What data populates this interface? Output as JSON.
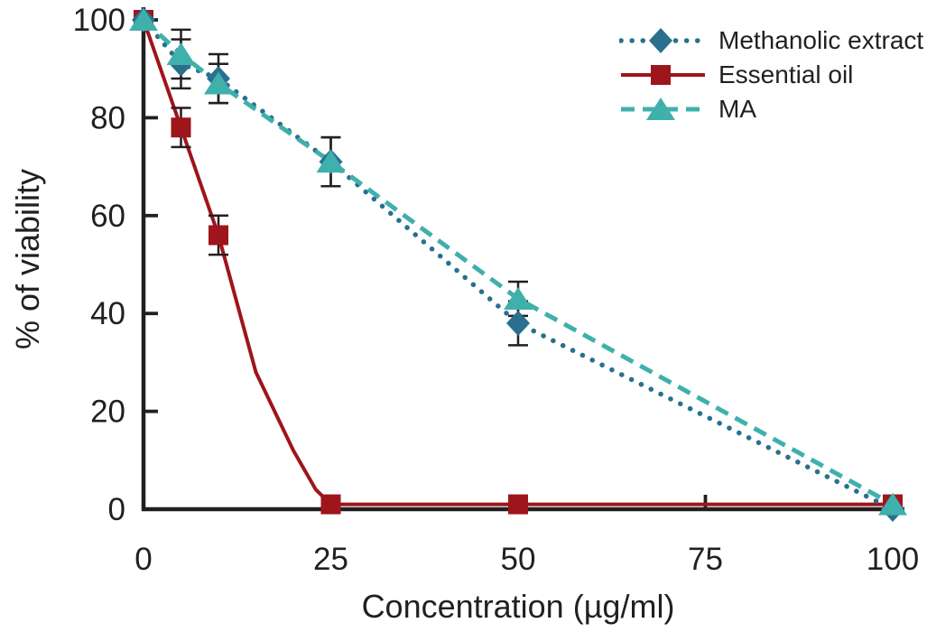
{
  "chart_data": {
    "type": "line",
    "title": "",
    "xlabel": "Concentration (µg/ml)",
    "ylabel": "% of viability",
    "xlim": [
      0,
      100
    ],
    "ylim": [
      0,
      100
    ],
    "x_ticks": [
      0,
      25,
      50,
      75,
      100
    ],
    "y_ticks": [
      0,
      20,
      40,
      60,
      80,
      100
    ],
    "grid": false,
    "legend_position": "top-right",
    "axis_color": "#231f20",
    "error_bar_color": "#231f20",
    "series": [
      {
        "name": "Methanolic extract",
        "color": "#29708f",
        "line_style": "dotted",
        "marker": "diamond",
        "x": [
          0,
          5,
          10,
          25,
          50,
          100
        ],
        "y": [
          100,
          91,
          88,
          71,
          38,
          0
        ],
        "yerr": [
          0,
          5,
          5,
          5,
          4.5,
          0
        ]
      },
      {
        "name": "Essential oil",
        "color": "#9e151b",
        "line_style": "solid",
        "marker": "square",
        "x": [
          0,
          5,
          10,
          25,
          50,
          100
        ],
        "y": [
          100,
          78,
          56,
          1,
          1,
          1
        ],
        "yerr": [
          0,
          4,
          4,
          0,
          0,
          0
        ],
        "line_passes_through": [
          [
            15,
            28
          ],
          [
            20,
            12
          ],
          [
            23,
            4
          ]
        ]
      },
      {
        "name": "MA",
        "color": "#3fb0ab",
        "line_style": "dashed",
        "marker": "triangle",
        "x": [
          0,
          5,
          10,
          25,
          50,
          100
        ],
        "y": [
          100,
          93,
          87,
          71,
          43,
          1
        ],
        "yerr": [
          0,
          5,
          4,
          5,
          3.5,
          0
        ]
      }
    ]
  }
}
